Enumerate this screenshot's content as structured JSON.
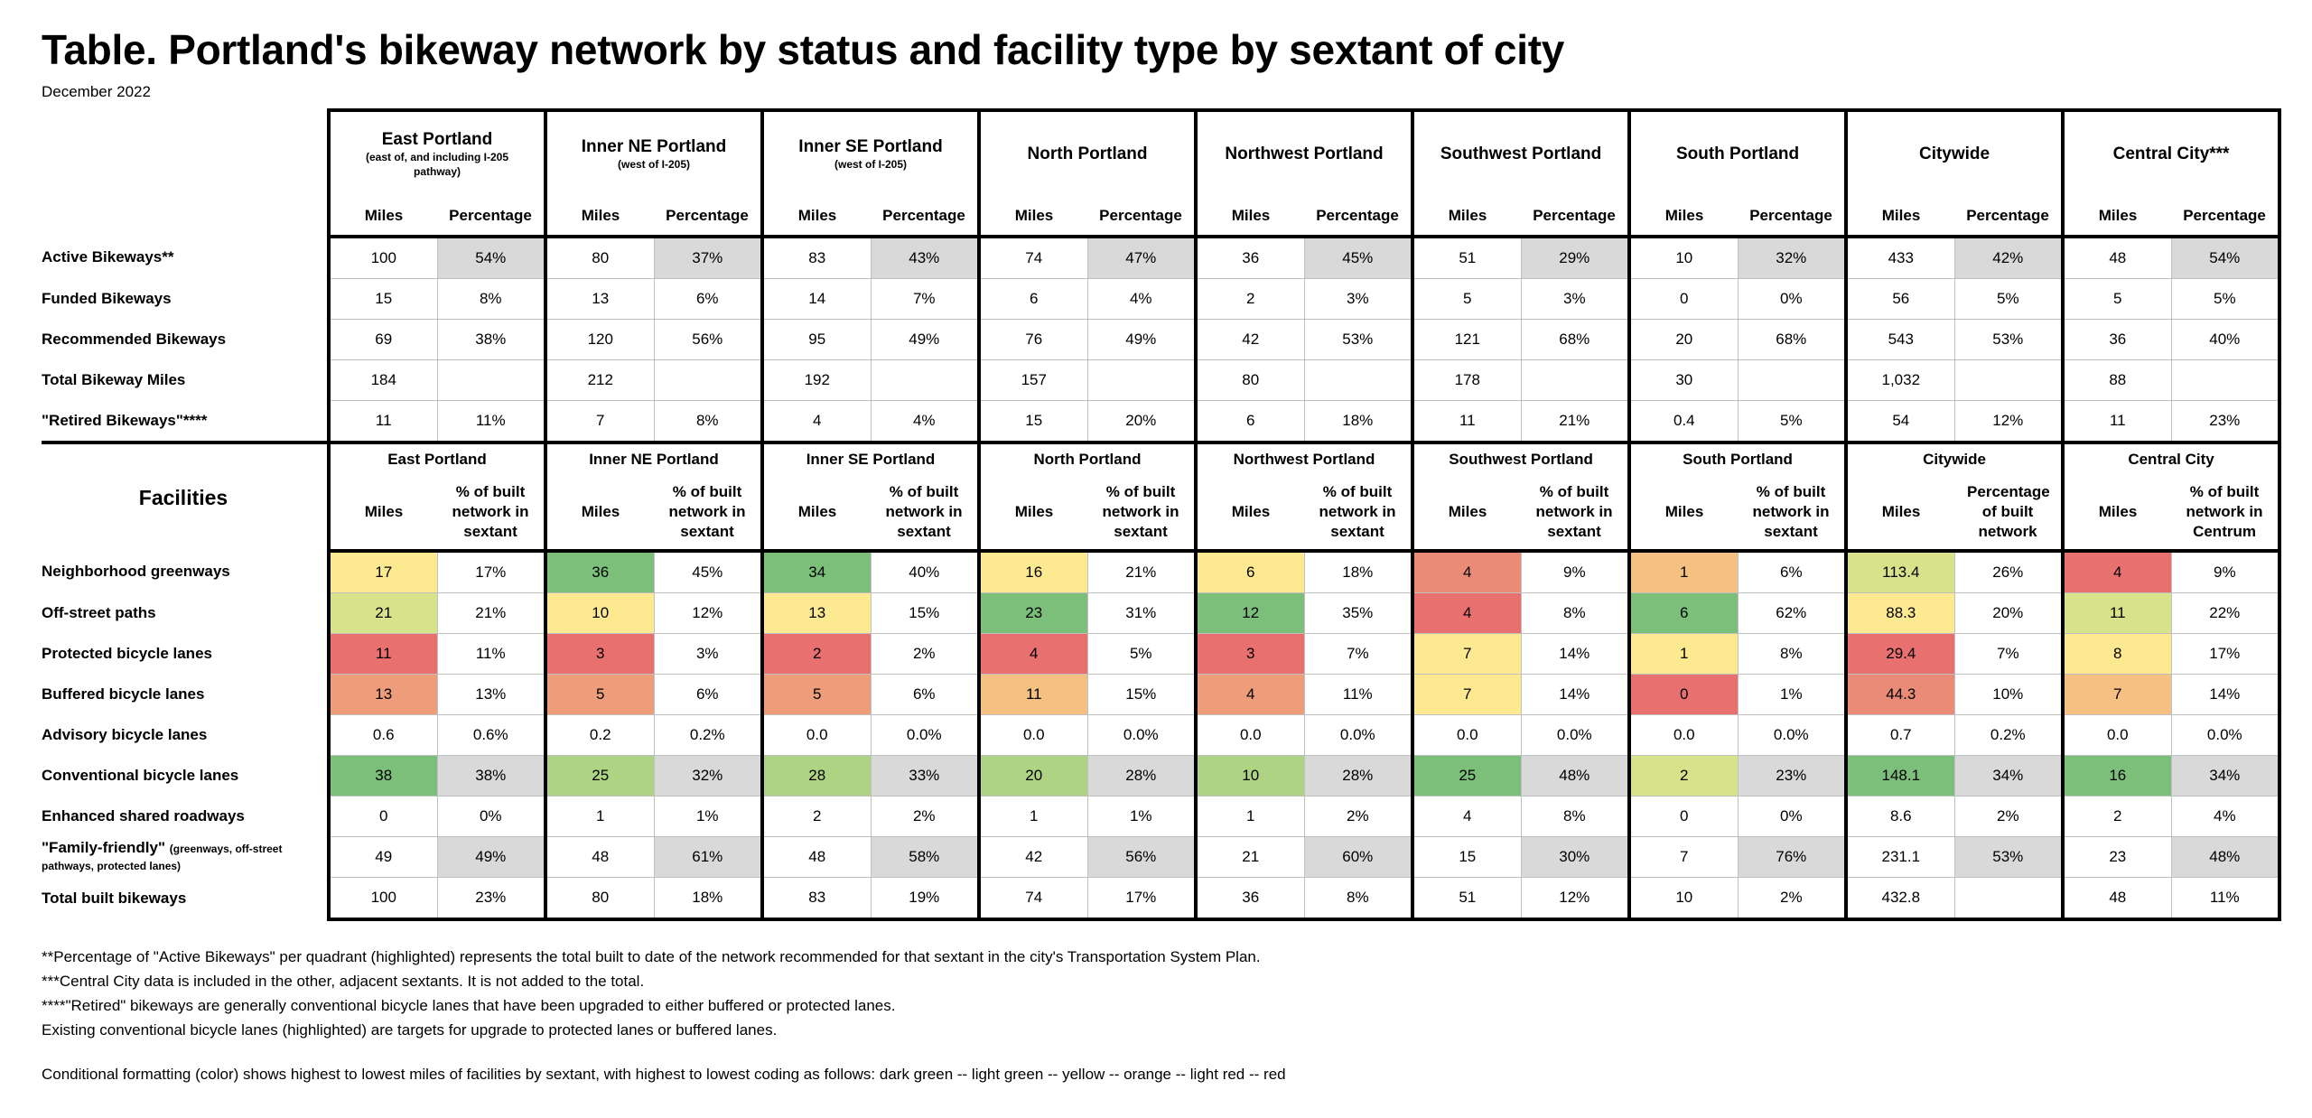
{
  "title": "Table.  Portland's bikeway network by status and facility type by sextant of city",
  "subtitle": "December 2022",
  "colors": {
    "gray": "#d9d9d9",
    "dark_green": "#7bbf7a",
    "light_green": "#aed383",
    "yellow_green": "#d7e28a",
    "yellow": "#fde98f",
    "light_orange": "#f4c183",
    "orange": "#ee9d7b",
    "light_red": "#ea8b77",
    "red": "#e8706f"
  },
  "regions_top": [
    {
      "name": "East Portland",
      "sub": "(east of, and including I-205 pathway)"
    },
    {
      "name": "Inner NE Portland",
      "sub": "(west of I-205)"
    },
    {
      "name": "Inner SE Portland",
      "sub": "(west of I-205)"
    },
    {
      "name": "North Portland",
      "sub": ""
    },
    {
      "name": "Northwest Portland",
      "sub": ""
    },
    {
      "name": "Southwest Portland",
      "sub": ""
    },
    {
      "name": "South Portland",
      "sub": ""
    },
    {
      "name": "Citywide",
      "sub": ""
    },
    {
      "name": "Central City***",
      "sub": ""
    }
  ],
  "miles_label": "Miles",
  "percentage_label": "Percentage",
  "status_rows": [
    {
      "label": "Active Bikeways**",
      "hl": true,
      "cells": [
        "100",
        "54%",
        "80",
        "37%",
        "83",
        "43%",
        "74",
        "47%",
        "36",
        "45%",
        "51",
        "29%",
        "10",
        "32%",
        "433",
        "42%",
        "48",
        "54%"
      ]
    },
    {
      "label": "Funded Bikeways",
      "hl": false,
      "cells": [
        "15",
        "8%",
        "13",
        "6%",
        "14",
        "7%",
        "6",
        "4%",
        "2",
        "3%",
        "5",
        "3%",
        "0",
        "0%",
        "56",
        "5%",
        "5",
        "5%"
      ]
    },
    {
      "label": "Recommended Bikeways",
      "hl": false,
      "cells": [
        "69",
        "38%",
        "120",
        "56%",
        "95",
        "49%",
        "76",
        "49%",
        "42",
        "53%",
        "121",
        "68%",
        "20",
        "68%",
        "543",
        "53%",
        "36",
        "40%"
      ]
    },
    {
      "label": "Total Bikeway Miles",
      "hl": false,
      "cells": [
        "184",
        "",
        "212",
        "",
        "192",
        "",
        "157",
        "",
        "80",
        "",
        "178",
        "",
        "30",
        "",
        "1,032",
        "",
        "88",
        ""
      ]
    },
    {
      "label": "\"Retired Bikeways\"****",
      "hl": false,
      "cells": [
        "11",
        "11%",
        "7",
        "8%",
        "4",
        "4%",
        "15",
        "20%",
        "6",
        "18%",
        "11",
        "21%",
        "0.4",
        "5%",
        "54",
        "12%",
        "11",
        "23%"
      ]
    }
  ],
  "facilities_title": "Facilities",
  "regions_bottom": [
    "East Portland",
    "Inner NE Portland",
    "Inner SE Portland",
    "North Portland",
    "Northwest Portland",
    "Southwest Portland",
    "South Portland",
    "Citywide",
    "Central City"
  ],
  "pct_labels_bottom": [
    "% of built network in sextant",
    "% of built network in sextant",
    "% of built network in sextant",
    "% of built network in sextant",
    "% of built network in sextant",
    "% of built network in sextant",
    "% of built network in sextant",
    "Percentage of built network",
    "% of built network in Centrum"
  ],
  "facility_rows": [
    {
      "label": "Neighborhood greenways",
      "label_small": "",
      "pct_hl": false,
      "cells": [
        "17",
        "17%",
        "36",
        "45%",
        "34",
        "40%",
        "16",
        "21%",
        "6",
        "18%",
        "4",
        "9%",
        "1",
        "6%",
        "113.4",
        "26%",
        "4",
        "9%"
      ],
      "miles_colors": [
        "yellow",
        "dark_green",
        "dark_green",
        "yellow",
        "yellow",
        "light_red",
        "light_orange",
        "yellow_green",
        "red"
      ]
    },
    {
      "label": "Off-street paths",
      "label_small": "",
      "pct_hl": false,
      "cells": [
        "21",
        "21%",
        "10",
        "12%",
        "13",
        "15%",
        "23",
        "31%",
        "12",
        "35%",
        "4",
        "8%",
        "6",
        "62%",
        "88.3",
        "20%",
        "11",
        "22%"
      ],
      "miles_colors": [
        "yellow_green",
        "yellow",
        "yellow",
        "dark_green",
        "dark_green",
        "red",
        "dark_green",
        "yellow",
        "yellow_green"
      ]
    },
    {
      "label": "Protected bicycle lanes",
      "label_small": "",
      "pct_hl": false,
      "cells": [
        "11",
        "11%",
        "3",
        "3%",
        "2",
        "2%",
        "4",
        "5%",
        "3",
        "7%",
        "7",
        "14%",
        "1",
        "8%",
        "29.4",
        "7%",
        "8",
        "17%"
      ],
      "miles_colors": [
        "red",
        "red",
        "red",
        "red",
        "red",
        "yellow",
        "yellow",
        "red",
        "yellow"
      ]
    },
    {
      "label": "Buffered bicycle lanes",
      "label_small": "",
      "pct_hl": false,
      "cells": [
        "13",
        "13%",
        "5",
        "6%",
        "5",
        "6%",
        "11",
        "15%",
        "4",
        "11%",
        "7",
        "14%",
        "0",
        "1%",
        "44.3",
        "10%",
        "7",
        "14%"
      ],
      "miles_colors": [
        "orange",
        "orange",
        "orange",
        "light_orange",
        "orange",
        "yellow",
        "red",
        "light_red",
        "light_orange"
      ]
    },
    {
      "label": "Advisory bicycle lanes",
      "label_small": "",
      "pct_hl": false,
      "cells": [
        "0.6",
        "0.6%",
        "0.2",
        "0.2%",
        "0.0",
        "0.0%",
        "0.0",
        "0.0%",
        "0.0",
        "0.0%",
        "0.0",
        "0.0%",
        "0.0",
        "0.0%",
        "0.7",
        "0.2%",
        "0.0",
        "0.0%"
      ],
      "miles_colors": [
        "",
        "",
        "",
        "",
        "",
        "",
        "",
        "",
        ""
      ]
    },
    {
      "label": "Conventional bicycle lanes",
      "label_small": "",
      "pct_hl": true,
      "cells": [
        "38",
        "38%",
        "25",
        "32%",
        "28",
        "33%",
        "20",
        "28%",
        "10",
        "28%",
        "25",
        "48%",
        "2",
        "23%",
        "148.1",
        "34%",
        "16",
        "34%"
      ],
      "miles_colors": [
        "dark_green",
        "light_green",
        "light_green",
        "light_green",
        "light_green",
        "dark_green",
        "yellow_green",
        "dark_green",
        "dark_green"
      ]
    },
    {
      "label": "Enhanced shared roadways",
      "label_small": "",
      "pct_hl": false,
      "cells": [
        "0",
        "0%",
        "1",
        "1%",
        "2",
        "2%",
        "1",
        "1%",
        "1",
        "2%",
        "4",
        "8%",
        "0",
        "0%",
        "8.6",
        "2%",
        "2",
        "4%"
      ],
      "miles_colors": [
        "",
        "",
        "",
        "",
        "",
        "",
        "",
        "",
        ""
      ]
    },
    {
      "label": "\"Family-friendly\"",
      "label_small": "(greenways, off-street pathways, protected lanes)",
      "pct_hl": true,
      "cells": [
        "49",
        "49%",
        "48",
        "61%",
        "48",
        "58%",
        "42",
        "56%",
        "21",
        "60%",
        "15",
        "30%",
        "7",
        "76%",
        "231.1",
        "53%",
        "23",
        "48%"
      ],
      "miles_colors": [
        "",
        "",
        "",
        "",
        "",
        "",
        "",
        "",
        ""
      ]
    },
    {
      "label": "Total built bikeways",
      "label_small": "",
      "pct_hl": false,
      "cells": [
        "100",
        "23%",
        "80",
        "18%",
        "83",
        "19%",
        "74",
        "17%",
        "36",
        "8%",
        "51",
        "12%",
        "10",
        "2%",
        "432.8",
        "",
        "48",
        "11%"
      ],
      "miles_colors": [
        "",
        "",
        "",
        "",
        "",
        "",
        "",
        "",
        ""
      ]
    }
  ],
  "notes": [
    "**Percentage of \"Active Bikeways\" per quadrant (highlighted) represents the total built to date of the network recommended for that sextant in the city's Transportation System Plan.",
    "***Central City data is included in the other, adjacent sextants. It is not added to the total.",
    "****\"Retired\" bikeways are generally conventional bicycle lanes that have been upgraded to either buffered or protected lanes.",
    "Existing conventional bicycle lanes (highlighted) are targets for upgrade to protected lanes or buffered lanes."
  ],
  "color_note": "Conditional formatting (color) shows highest to lowest miles of facilities by sextant, with highest to lowest coding as follows: dark green -- light green -- yellow -- orange -- light red -- red"
}
